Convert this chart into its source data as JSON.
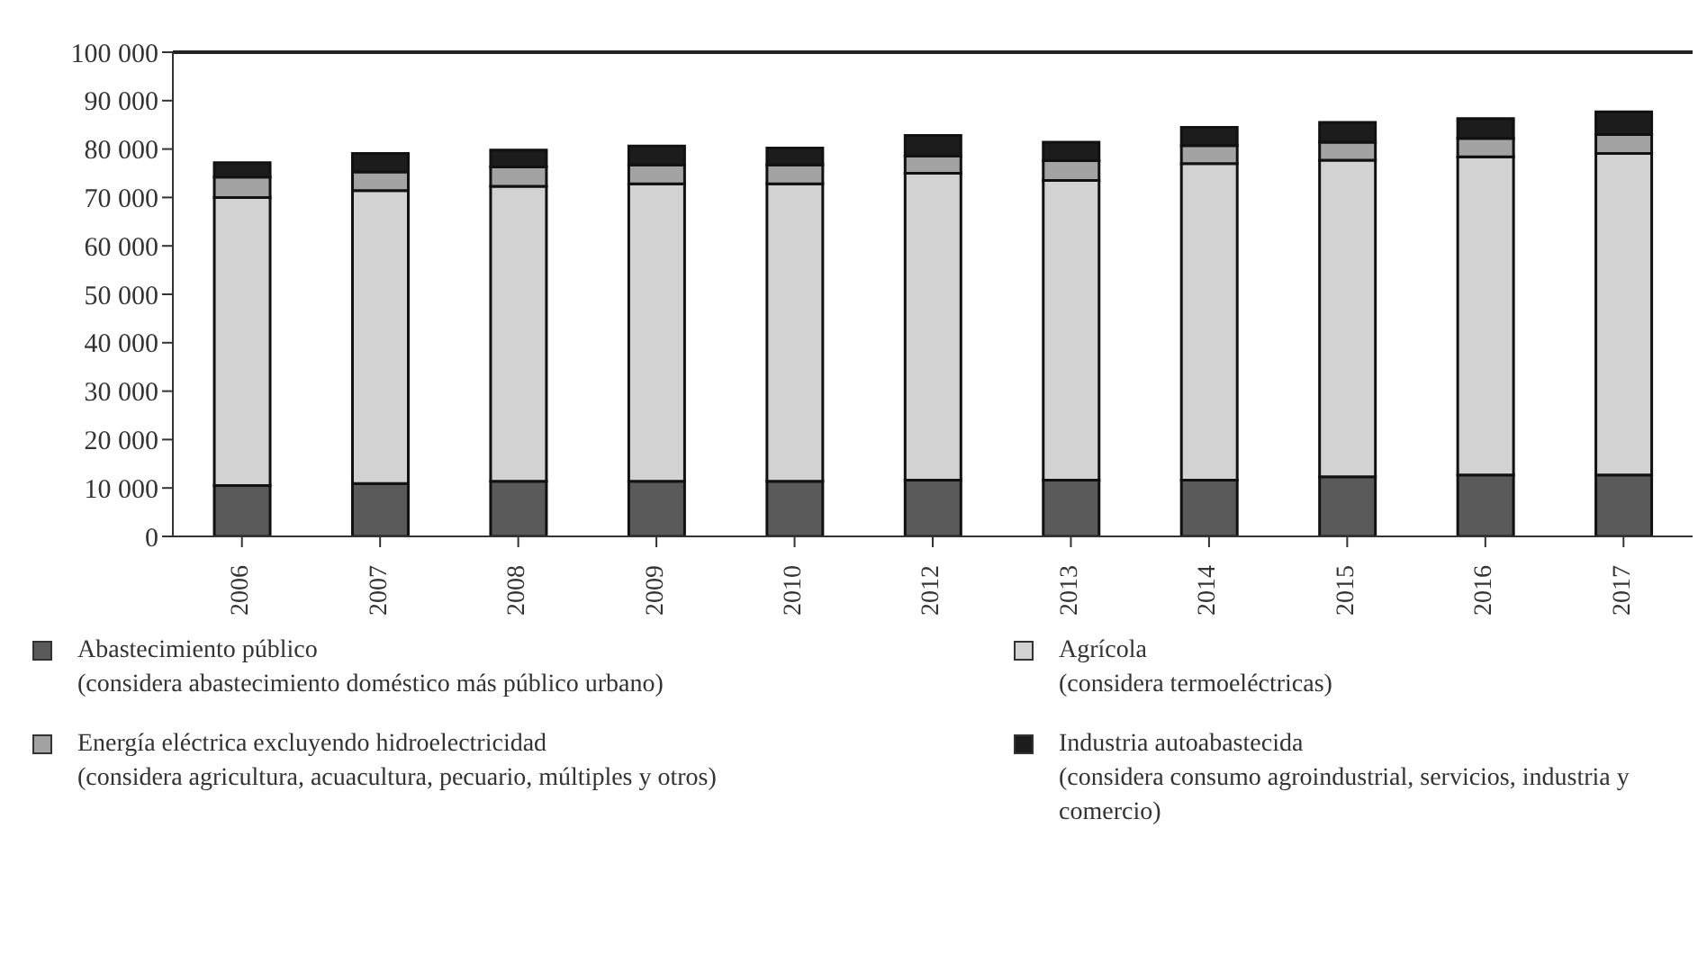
{
  "chart_data": {
    "type": "bar",
    "stacked": true,
    "categories": [
      "2006",
      "2007",
      "2008",
      "2009",
      "2010",
      "2012",
      "2013",
      "2014",
      "2015",
      "2016",
      "2017"
    ],
    "series": [
      {
        "name": "Abastecimiento público\n(considera abastecimiento doméstico más público urbano)",
        "color": "#5a5a5a",
        "values": [
          10500,
          10900,
          11400,
          11400,
          11400,
          11600,
          11600,
          11600,
          12300,
          12700,
          12700
        ]
      },
      {
        "name": "Agrícola\n(considera termoeléctricas)",
        "color": "#d2d2d2",
        "values": [
          59500,
          60500,
          60900,
          61400,
          61400,
          63400,
          61900,
          65400,
          65400,
          65700,
          66400
        ]
      },
      {
        "name": "Energía eléctrica excluyendo hidroelectricidad\n(considera agricultura, acuacultura, pecuario, múltiples y otros)",
        "color": "#a3a3a3",
        "values": [
          4200,
          3900,
          4000,
          3900,
          3900,
          3600,
          4100,
          3700,
          3700,
          3800,
          3900
        ]
      },
      {
        "name": "Industria autoabastecida\n(considera consumo agroindustrial, servicios, industria y comercio)",
        "color": "#1c1c1c",
        "values": [
          3000,
          3800,
          3500,
          3900,
          3500,
          4200,
          3800,
          3800,
          4100,
          4100,
          4700
        ]
      }
    ],
    "ylim": [
      0,
      100000
    ],
    "yticks": [
      {
        "value": 0,
        "label": "0"
      },
      {
        "value": 10000,
        "label": "10 000"
      },
      {
        "value": 20000,
        "label": "20 000"
      },
      {
        "value": 30000,
        "label": "30 000"
      },
      {
        "value": 40000,
        "label": "40 000"
      },
      {
        "value": 50000,
        "label": "50 000"
      },
      {
        "value": 60000,
        "label": "60 000"
      },
      {
        "value": 70000,
        "label": "70 000"
      },
      {
        "value": 80000,
        "label": "80 000"
      },
      {
        "value": 90000,
        "label": "90 000"
      },
      {
        "value": 100000,
        "label": "100 000"
      }
    ],
    "legend": "bottom",
    "grid": false
  }
}
